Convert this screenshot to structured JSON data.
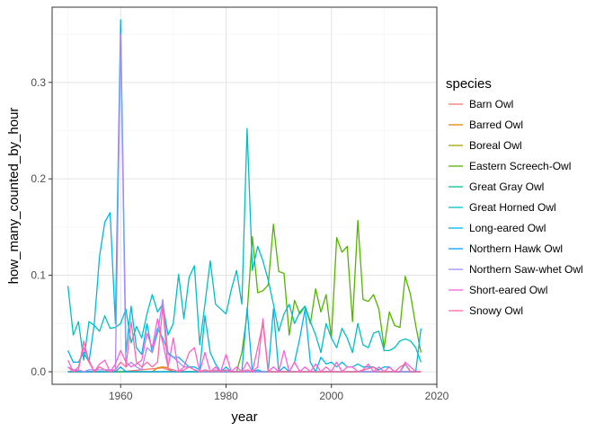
{
  "chart_data": {
    "type": "line",
    "xlabel": "year",
    "ylabel": "how_many_counted_by_hour",
    "xlim": [
      1947,
      2020
    ],
    "ylim": [
      -0.013,
      0.378
    ],
    "x_ticks": [
      1960,
      1980,
      2000,
      2020
    ],
    "y_ticks": [
      0.0,
      0.1,
      0.2,
      0.3
    ],
    "y_tick_labels": [
      "0.0",
      "0.1",
      "0.2",
      "0.3"
    ],
    "grid": true,
    "legend_position": "right",
    "legend_title": "species",
    "series": [
      {
        "name": "Barn Owl",
        "color": "#F8766D",
        "x": [
          1950,
          1960,
          1968,
          1969,
          1970,
          1980,
          1985,
          1995,
          2005,
          2017
        ],
        "y": [
          0.0,
          0.0,
          0.004,
          0.002,
          0.0,
          0.0,
          0.0,
          0.0,
          0.0,
          0.0
        ]
      },
      {
        "name": "Barred Owl",
        "color": "#E58700",
        "x": [
          1950,
          1966,
          1967,
          1968,
          1969,
          1970,
          1980,
          1990,
          2000,
          2010,
          2017
        ],
        "y": [
          0.0,
          0.0,
          0.004,
          0.005,
          0.004,
          0.0,
          0.0,
          0.0,
          0.0,
          0.0,
          0.0
        ]
      },
      {
        "name": "Boreal Owl",
        "color": "#A3A500",
        "x": [
          1950,
          1960,
          1970,
          1980,
          1990,
          2000,
          2010,
          2017
        ],
        "y": [
          0.0,
          0.0,
          0.0,
          0.0,
          0.0,
          0.0,
          0.0,
          0.0
        ]
      },
      {
        "name": "Eastern Screech-Owl",
        "color": "#53B400",
        "x": [
          1950,
          1980,
          1981,
          1982,
          1983,
          1984,
          1985,
          1986,
          1987,
          1988,
          1989,
          1990,
          1991,
          1992,
          1993,
          1994,
          1995,
          1996,
          1997,
          1998,
          1999,
          2000,
          2001,
          2002,
          2003,
          2004,
          2005,
          2006,
          2007,
          2008,
          2009,
          2010,
          2011,
          2012,
          2013,
          2014,
          2015,
          2016,
          2017
        ],
        "y": [
          0.0,
          0.0,
          0.0,
          0.0,
          0.02,
          0.06,
          0.14,
          0.082,
          0.084,
          0.09,
          0.153,
          0.104,
          0.102,
          0.038,
          0.074,
          0.06,
          0.068,
          0.05,
          0.086,
          0.062,
          0.08,
          0.035,
          0.139,
          0.124,
          0.13,
          0.052,
          0.157,
          0.075,
          0.073,
          0.08,
          0.065,
          0.025,
          0.062,
          0.048,
          0.046,
          0.099,
          0.08,
          0.048,
          0.02
        ]
      },
      {
        "name": "Great Gray Owl",
        "color": "#00C094",
        "x": [
          1950,
          1970,
          1980,
          1983,
          1984,
          1985,
          1986,
          1990,
          2000,
          2010,
          2017
        ],
        "y": [
          0.0,
          0.0,
          0.0,
          0.0,
          0.0,
          0.0,
          0.0,
          0.0,
          0.0,
          0.0,
          0.0
        ]
      },
      {
        "name": "Great Horned Owl",
        "color": "#00BFC4",
        "x": [
          1950,
          1951,
          1952,
          1953,
          1954,
          1955,
          1956,
          1957,
          1958,
          1959,
          1960,
          1961,
          1962,
          1963,
          1964,
          1965,
          1966,
          1967,
          1968,
          1969,
          1970,
          1971,
          1972,
          1973,
          1974,
          1975,
          1976,
          1977,
          1978,
          1979,
          1980,
          1981,
          1982,
          1983,
          1984,
          1985,
          1986,
          1987,
          1988,
          1989,
          1990,
          1991,
          1992,
          1993,
          1994,
          1995,
          1996,
          1997,
          1998,
          1999,
          2000,
          2001,
          2002,
          2003,
          2004,
          2005,
          2006,
          2007,
          2008,
          2009,
          2010,
          2011,
          2012,
          2013,
          2014,
          2015,
          2016,
          2017
        ],
        "y": [
          0.089,
          0.038,
          0.052,
          0.012,
          0.052,
          0.048,
          0.042,
          0.058,
          0.045,
          0.046,
          0.05,
          0.065,
          0.03,
          0.047,
          0.035,
          0.06,
          0.08,
          0.062,
          0.07,
          0.038,
          0.05,
          0.101,
          0.055,
          0.098,
          0.11,
          0.028,
          0.07,
          0.115,
          0.07,
          0.065,
          0.06,
          0.085,
          0.105,
          0.07,
          0.252,
          0.105,
          0.13,
          0.115,
          0.095,
          0.07,
          0.042,
          0.06,
          0.07,
          0.05,
          0.062,
          0.068,
          0.052,
          0.038,
          0.02,
          0.05,
          0.035,
          0.025,
          0.045,
          0.035,
          0.02,
          0.05,
          0.028,
          0.025,
          0.04,
          0.042,
          0.022,
          0.022,
          0.025,
          0.032,
          0.034,
          0.032,
          0.025,
          0.01
        ]
      },
      {
        "name": "Long-eared Owl",
        "color": "#00B6EB",
        "x": [
          1950,
          1951,
          1952,
          1953,
          1954,
          1955,
          1956,
          1957,
          1958,
          1959,
          1960,
          1961,
          1962,
          1963,
          1964,
          1965,
          1966,
          1967,
          1968,
          1969,
          1970,
          1971,
          1972,
          1973,
          1974,
          1975,
          1976,
          1977,
          1978,
          1979,
          1980,
          1981,
          1982,
          1983,
          1984,
          1985,
          1986,
          1987,
          1988,
          1989,
          1990,
          1991,
          1992,
          1993,
          1994,
          1995,
          1996,
          1997,
          1998,
          1999,
          2000,
          2001,
          2002,
          2003,
          2004,
          2005,
          2006,
          2007,
          2008,
          2009,
          2010,
          2011,
          2012,
          2013,
          2014,
          2015,
          2016,
          2017
        ],
        "y": [
          0.022,
          0.01,
          0.01,
          0.02,
          0.01,
          0.05,
          0.12,
          0.155,
          0.165,
          0.05,
          0.365,
          0.02,
          0.068,
          0.025,
          0.018,
          0.05,
          0.02,
          0.045,
          0.035,
          0.02,
          0.015,
          0.015,
          0.01,
          0.005,
          0.005,
          0.002,
          0.058,
          0.02,
          0.008,
          0.0,
          0.005,
          0.0,
          0.0,
          0.0,
          0.066,
          0.0,
          0.002,
          0.0,
          0.0,
          0.065,
          0.0,
          0.005,
          0.0,
          0.01,
          0.035,
          0.065,
          0.01,
          0.0,
          0.015,
          0.008,
          0.01,
          0.005,
          0.01,
          0.005,
          0.005,
          0.008,
          0.005,
          0.005,
          0.005,
          0.002,
          0.005,
          0.005,
          0.0,
          0.0,
          0.008,
          0.0,
          0.0,
          0.045
        ]
      },
      {
        "name": "Northern Hawk Owl",
        "color": "#06A4FF",
        "x": [
          1950,
          1955,
          1959,
          1960,
          1961,
          1965,
          1970,
          1980,
          1990,
          2000,
          2010,
          2017
        ],
        "y": [
          0.0,
          0.0,
          0.0,
          0.005,
          0.0,
          0.0,
          0.0,
          0.0,
          0.0,
          0.0,
          0.0,
          0.0
        ]
      },
      {
        "name": "Northern Saw-whet Owl",
        "color": "#A58AFF",
        "x": [
          1950,
          1951,
          1952,
          1953,
          1954,
          1955,
          1956,
          1957,
          1958,
          1959,
          1960,
          1961,
          1962,
          1963,
          1964,
          1965,
          1966,
          1967,
          1968,
          1969,
          1970,
          1971,
          1972,
          1973,
          1974,
          1975,
          1980,
          1985,
          1990,
          2000,
          2010,
          2017
        ],
        "y": [
          0.005,
          0.002,
          0.002,
          0.0,
          0.002,
          0.002,
          0.002,
          0.002,
          0.002,
          0.002,
          0.35,
          0.005,
          0.01,
          0.005,
          0.002,
          0.025,
          0.02,
          0.04,
          0.075,
          0.018,
          0.015,
          0.01,
          0.005,
          0.005,
          0.002,
          0.0,
          0.0,
          0.0,
          0.0,
          0.0,
          0.0,
          0.0
        ]
      },
      {
        "name": "Short-eared Owl",
        "color": "#FB61D7",
        "x": [
          1950,
          1951,
          1952,
          1953,
          1954,
          1955,
          1956,
          1957,
          1958,
          1959,
          1960,
          1961,
          1962,
          1963,
          1964,
          1965,
          1966,
          1967,
          1968,
          1969,
          1970,
          1971,
          1972,
          1973,
          1974,
          1975,
          1976,
          1977,
          1978,
          1979,
          1980,
          1981,
          1982,
          1983,
          1984,
          1985,
          1986,
          1987,
          1988,
          1989,
          1990,
          1991,
          1992,
          1993,
          1994,
          1995,
          1996,
          1997,
          1998,
          1999,
          2000,
          2001,
          2002,
          2003,
          2004,
          2005,
          2006,
          2007,
          2008,
          2009,
          2010,
          2011,
          2012,
          2013,
          2014,
          2015,
          2016,
          2017
        ],
        "y": [
          0.012,
          0.0,
          0.005,
          0.025,
          0.012,
          0.0,
          0.008,
          0.012,
          0.0,
          0.008,
          0.022,
          0.01,
          0.005,
          0.008,
          0.012,
          0.04,
          0.025,
          0.055,
          0.03,
          0.005,
          0.035,
          0.0,
          0.005,
          0.02,
          0.025,
          0.0,
          0.02,
          0.0,
          0.005,
          0.0,
          0.018,
          0.0,
          0.005,
          0.0,
          0.01,
          0.0,
          0.005,
          0.055,
          0.0,
          0.005,
          0.0,
          0.022,
          0.0,
          0.01,
          0.0,
          0.005,
          0.0,
          0.008,
          0.0,
          0.005,
          0.0,
          0.01,
          0.0,
          0.005,
          0.005,
          0.0,
          0.002,
          0.008,
          0.0,
          0.005,
          0.0,
          0.005,
          0.0,
          0.0,
          0.01,
          0.005,
          0.0,
          0.0
        ]
      },
      {
        "name": "Snowy Owl",
        "color": "#FF67A4",
        "x": [
          1950,
          1951,
          1952,
          1953,
          1954,
          1955,
          1956,
          1957,
          1958,
          1959,
          1960,
          1961,
          1962,
          1963,
          1964,
          1965,
          1966,
          1967,
          1968,
          1969,
          1970,
          1971,
          1972,
          1973,
          1974,
          1975,
          1976,
          1977,
          1978,
          1979,
          1980,
          1981,
          1982,
          1983,
          1984,
          1985,
          1986,
          1987,
          1988,
          1989,
          1990,
          1995,
          2000,
          2005,
          2008,
          2009,
          2010,
          2012,
          2013,
          2014,
          2015,
          2017
        ],
        "y": [
          0.005,
          0.0,
          0.002,
          0.032,
          0.01,
          0.0,
          0.005,
          0.002,
          0.0,
          0.002,
          0.01,
          0.005,
          0.052,
          0.01,
          0.005,
          0.01,
          0.005,
          0.01,
          0.068,
          0.003,
          0.002,
          0.0,
          0.002,
          0.005,
          0.002,
          0.0,
          0.002,
          0.0,
          0.002,
          0.0,
          0.002,
          0.0,
          0.0,
          0.0,
          0.002,
          0.0,
          0.025,
          0.05,
          0.0,
          0.0,
          0.0,
          0.0,
          0.0,
          0.0,
          0.005,
          0.0,
          0.0,
          0.0,
          0.005,
          0.008,
          0.0,
          0.0
        ]
      }
    ]
  }
}
